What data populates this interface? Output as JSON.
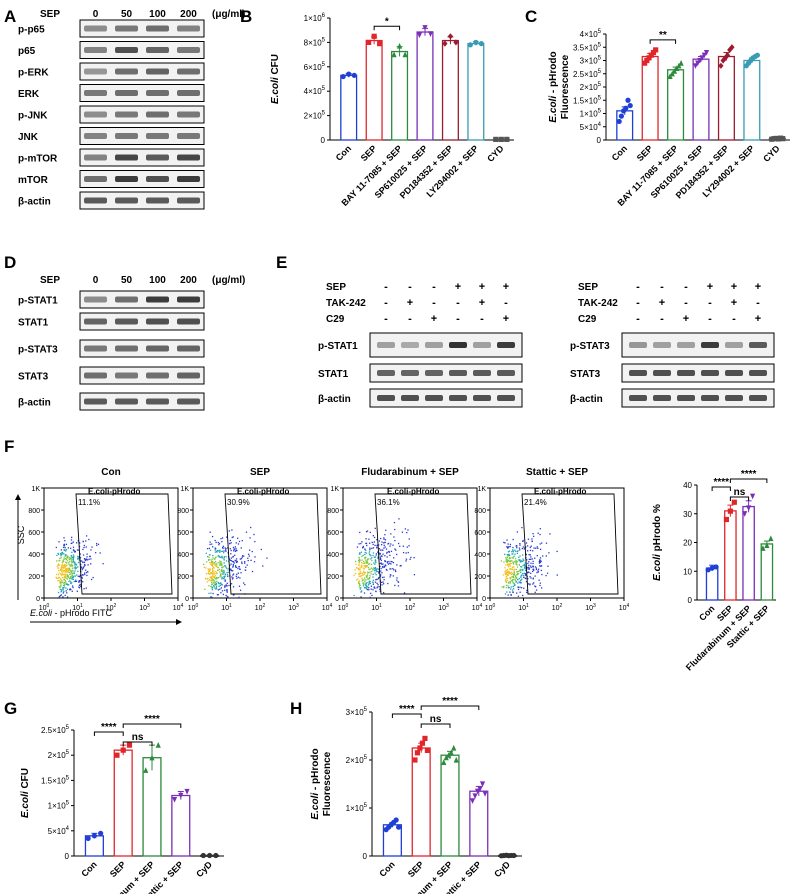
{
  "panels": {
    "A": {
      "letter": "A",
      "header": {
        "label": "SEP",
        "doses": [
          "0",
          "50",
          "100",
          "200"
        ],
        "unit": "(μg/ml)"
      },
      "rows": [
        "p-p65",
        "p65",
        "p-ERK",
        "ERK",
        "p-JNK",
        "JNK",
        "p-mTOR",
        "mTOR",
        "β-actin"
      ],
      "intensities": [
        [
          0.45,
          0.55,
          0.6,
          0.5
        ],
        [
          0.5,
          0.75,
          0.65,
          0.55
        ],
        [
          0.4,
          0.6,
          0.65,
          0.6
        ],
        [
          0.55,
          0.6,
          0.6,
          0.6
        ],
        [
          0.45,
          0.55,
          0.6,
          0.55
        ],
        [
          0.5,
          0.55,
          0.55,
          0.55
        ],
        [
          0.5,
          0.8,
          0.7,
          0.8
        ],
        [
          0.6,
          0.85,
          0.75,
          0.85
        ],
        [
          0.7,
          0.7,
          0.7,
          0.7
        ]
      ]
    },
    "D": {
      "letter": "D",
      "header": {
        "label": "SEP",
        "doses": [
          "0",
          "50",
          "100",
          "200"
        ],
        "unit": "(μg/ml)"
      },
      "rows": [
        "p-STAT1",
        "STAT1",
        "p-STAT3",
        "STAT3",
        "β-actin"
      ],
      "intensities": [
        [
          0.45,
          0.6,
          0.85,
          0.85
        ],
        [
          0.65,
          0.7,
          0.75,
          0.75
        ],
        [
          0.55,
          0.6,
          0.65,
          0.65
        ],
        [
          0.6,
          0.55,
          0.6,
          0.65
        ],
        [
          0.7,
          0.7,
          0.7,
          0.7
        ]
      ]
    },
    "E": {
      "letter": "E",
      "treatments": [
        {
          "label": "SEP",
          "signs": [
            "-",
            "-",
            "-",
            "+",
            "+",
            "+"
          ]
        },
        {
          "label": "TAK-242",
          "signs": [
            "-",
            "+",
            "-",
            "-",
            "+",
            "-"
          ]
        },
        {
          "label": "C29",
          "signs": [
            "-",
            "-",
            "+",
            "-",
            "-",
            "+"
          ]
        }
      ],
      "left_rows": [
        "p-STAT1",
        "STAT1",
        "β-actin"
      ],
      "right_rows": [
        "p-STAT3",
        "STAT3",
        "β-actin"
      ],
      "left_intensities": [
        [
          0.35,
          0.3,
          0.35,
          0.9,
          0.35,
          0.85
        ],
        [
          0.65,
          0.65,
          0.65,
          0.7,
          0.7,
          0.7
        ],
        [
          0.75,
          0.75,
          0.75,
          0.75,
          0.75,
          0.75
        ]
      ],
      "right_intensities": [
        [
          0.4,
          0.35,
          0.35,
          0.85,
          0.35,
          0.7
        ],
        [
          0.75,
          0.75,
          0.75,
          0.75,
          0.75,
          0.75
        ],
        [
          0.75,
          0.75,
          0.75,
          0.75,
          0.75,
          0.75
        ]
      ]
    },
    "F": {
      "letter": "F",
      "ylabel": "SSC",
      "xlabel_italic": "E.coli",
      "xlabel_rest": " - pHrodo FITC",
      "y_ticks": [
        "1K",
        "800",
        "600",
        "400",
        "200",
        "0"
      ],
      "x_ticks": [
        {
          "base": "10",
          "exp": "0"
        },
        {
          "base": "10",
          "exp": "1"
        },
        {
          "base": "10",
          "exp": "2"
        },
        {
          "base": "10",
          "exp": "3"
        },
        {
          "base": "10",
          "exp": "4"
        }
      ],
      "gate_label": "E.coli-pHrodo",
      "plots": [
        {
          "title": "Con",
          "percent": "11.1%"
        },
        {
          "title": "SEP",
          "percent": "30.9%"
        },
        {
          "title": "Fludarabinum + SEP",
          "percent": "36.1%"
        },
        {
          "title": "Stattic + SEP",
          "percent": "21.4%"
        }
      ]
    }
  },
  "chart_data": [
    {
      "id": "B",
      "letter": "B",
      "type": "bar",
      "ylabel_italic": "E.coli",
      "ylabel_rest": " CFU",
      "ylabel2": "",
      "ylim": [
        0,
        1000000
      ],
      "yticks": [
        {
          "base": "0",
          "exp": ""
        },
        {
          "base": "2×10",
          "exp": "5"
        },
        {
          "base": "4×10",
          "exp": "5"
        },
        {
          "base": "6×10",
          "exp": "5"
        },
        {
          "base": "8×10",
          "exp": "5"
        },
        {
          "base": "1×10",
          "exp": "6"
        }
      ],
      "ytick_values": [
        0,
        200000,
        400000,
        600000,
        800000,
        1000000
      ],
      "categories": [
        "Con",
        "SEP",
        "BAY 11-7085 + SEP",
        "SP610025 + SEP",
        "PD184352 + SEP",
        "LY294002 + SEP",
        "CYD"
      ],
      "values": [
        530000,
        815000,
        725000,
        885000,
        815000,
        790000,
        5000
      ],
      "errors": [
        15000,
        30000,
        40000,
        30000,
        30000,
        15000,
        2000
      ],
      "points": [
        [
          520000,
          540000,
          530000
        ],
        [
          800000,
          850000,
          790000
        ],
        [
          700000,
          770000,
          700000
        ],
        [
          860000,
          920000,
          870000
        ],
        [
          790000,
          850000,
          800000
        ],
        [
          780000,
          800000,
          790000
        ],
        [
          5000,
          5000,
          5000
        ]
      ],
      "colors": [
        "#1f3fd6",
        "#e0262b",
        "#2c8a3c",
        "#7b2fb8",
        "#9b1b30",
        "#3a9bb5",
        "#555555"
      ],
      "markers": [
        "circle",
        "square",
        "triangle",
        "down",
        "diamond",
        "circle",
        "square"
      ],
      "sig": [
        {
          "from": 1,
          "to": 2,
          "label": "*"
        }
      ]
    },
    {
      "id": "C",
      "letter": "C",
      "type": "bar",
      "ylabel_italic": "E.coli",
      "ylabel_rest": " - pHrodo",
      "ylabel2": "Fluorescence",
      "ylim": [
        0,
        400000
      ],
      "yticks": [
        {
          "base": "0",
          "exp": ""
        },
        {
          "base": "5×10",
          "exp": "4"
        },
        {
          "base": "1×10",
          "exp": "5"
        },
        {
          "base": "1.5×10",
          "exp": "5"
        },
        {
          "base": "2×10",
          "exp": "5"
        },
        {
          "base": "2.5×10",
          "exp": "5"
        },
        {
          "base": "3×10",
          "exp": "5"
        },
        {
          "base": "3.5×10",
          "exp": "5"
        },
        {
          "base": "4×10",
          "exp": "5"
        }
      ],
      "ytick_values": [
        0,
        50000,
        100000,
        150000,
        200000,
        250000,
        300000,
        350000,
        400000
      ],
      "categories": [
        "Con",
        "SEP",
        "BAY 11-7085 + SEP",
        "SP610025 + SEP",
        "PD184352 + SEP",
        "LY294002 + SEP",
        "CYD"
      ],
      "values": [
        110000,
        315000,
        265000,
        305000,
        315000,
        300000,
        5000
      ],
      "errors": [
        15000,
        12000,
        10000,
        10000,
        15000,
        10000,
        2000
      ],
      "points": [
        [
          70000,
          90000,
          110000,
          120000,
          150000,
          130000
        ],
        [
          290000,
          300000,
          310000,
          320000,
          330000,
          340000
        ],
        [
          240000,
          250000,
          260000,
          270000,
          280000,
          290000
        ],
        [
          280000,
          290000,
          300000,
          310000,
          320000,
          330000
        ],
        [
          280000,
          300000,
          310000,
          320000,
          340000,
          350000
        ],
        [
          280000,
          290000,
          300000,
          310000,
          315000,
          320000
        ],
        [
          3000,
          5000,
          6000,
          4000,
          7000,
          5000
        ]
      ],
      "colors": [
        "#1f3fd6",
        "#e0262b",
        "#2c8a3c",
        "#7b2fb8",
        "#9b1b30",
        "#3a9bb5",
        "#555555"
      ],
      "markers": [
        "circle",
        "square",
        "triangle",
        "down",
        "diamond",
        "circle",
        "square"
      ],
      "sig": [
        {
          "from": 1,
          "to": 2,
          "label": "**"
        }
      ]
    },
    {
      "id": "Fbar",
      "letter": "",
      "type": "bar",
      "ylabel_italic": "E.coli",
      "ylabel_rest": " pHrodo %",
      "ylabel2": "",
      "ylim": [
        0,
        40
      ],
      "yticks": [
        {
          "base": "0",
          "exp": ""
        },
        {
          "base": "10",
          "exp": ""
        },
        {
          "base": "20",
          "exp": ""
        },
        {
          "base": "30",
          "exp": ""
        },
        {
          "base": "40",
          "exp": ""
        }
      ],
      "ytick_values": [
        0,
        10,
        20,
        30,
        40
      ],
      "categories": [
        "Con",
        "SEP",
        "Fludarabinum + SEP",
        "Stattic + SEP"
      ],
      "values": [
        11.1,
        31,
        32.5,
        19.5
      ],
      "errors": [
        1,
        2,
        2,
        1
      ],
      "points": [
        [
          10.5,
          11.1,
          11.5
        ],
        [
          28,
          30.9,
          34
        ],
        [
          30,
          32,
          36.1
        ],
        [
          18,
          19,
          21.4
        ]
      ],
      "colors": [
        "#1f3fd6",
        "#e0262b",
        "#7b2fb8",
        "#2c8a3c"
      ],
      "markers": [
        "circle",
        "square",
        "down",
        "triangle"
      ],
      "sig": [
        {
          "from": 0,
          "to": 1,
          "label": "****"
        },
        {
          "from": 1,
          "to": 2,
          "label": "ns"
        },
        {
          "from": 1,
          "to": 3,
          "label": "****"
        }
      ]
    },
    {
      "id": "G",
      "letter": "G",
      "type": "bar",
      "ylabel_italic": "E.coli",
      "ylabel_rest": " CFU",
      "ylabel2": "",
      "ylim": [
        0,
        250000
      ],
      "yticks": [
        {
          "base": "0",
          "exp": ""
        },
        {
          "base": "5×10",
          "exp": "4"
        },
        {
          "base": "1×10",
          "exp": "5"
        },
        {
          "base": "1.5×10",
          "exp": "5"
        },
        {
          "base": "2×10",
          "exp": "5"
        },
        {
          "base": "2.5×10",
          "exp": "5"
        }
      ],
      "ytick_values": [
        0,
        50000,
        100000,
        150000,
        200000,
        250000
      ],
      "categories": [
        "Con",
        "SEP",
        "Fludarabinum + SEP",
        "Stattic + SEP",
        "CyD"
      ],
      "values": [
        40000,
        210000,
        195000,
        120000,
        1000
      ],
      "errors": [
        5000,
        10000,
        25000,
        8000,
        500
      ],
      "points": [
        [
          35000,
          40000,
          45000
        ],
        [
          200000,
          210000,
          220000
        ],
        [
          170000,
          195000,
          220000
        ],
        [
          112000,
          120000,
          128000
        ],
        [
          1000,
          1000,
          1000
        ]
      ],
      "colors": [
        "#1f3fd6",
        "#e0262b",
        "#2c8a3c",
        "#7b2fb8",
        "#333333"
      ],
      "markers": [
        "circle",
        "square",
        "triangle",
        "down",
        "circle"
      ],
      "sig": [
        {
          "from": 0,
          "to": 1,
          "label": "****"
        },
        {
          "from": 1,
          "to": 2,
          "label": "ns"
        },
        {
          "from": 1,
          "to": 3,
          "label": "****"
        }
      ]
    },
    {
      "id": "H",
      "letter": "H",
      "type": "bar",
      "ylabel_italic": "E.coli",
      "ylabel_rest": " - pHrodo",
      "ylabel2": "Fluorescence",
      "ylim": [
        0,
        300000
      ],
      "yticks": [
        {
          "base": "0",
          "exp": ""
        },
        {
          "base": "1×10",
          "exp": "5"
        },
        {
          "base": "2×10",
          "exp": "5"
        },
        {
          "base": "3×10",
          "exp": "5"
        }
      ],
      "ytick_values": [
        0,
        100000,
        200000,
        300000
      ],
      "categories": [
        "Con",
        "SEP",
        "Fludarabinum + SEP",
        "Stattic + SEP",
        "CyD"
      ],
      "values": [
        65000,
        225000,
        210000,
        135000,
        1000
      ],
      "errors": [
        5000,
        10000,
        8000,
        10000,
        500
      ],
      "points": [
        [
          55000,
          60000,
          65000,
          70000,
          75000,
          60000
        ],
        [
          200000,
          215000,
          225000,
          235000,
          245000,
          220000
        ],
        [
          195000,
          205000,
          210000,
          215000,
          225000,
          200000
        ],
        [
          115000,
          125000,
          135000,
          140000,
          150000,
          130000
        ],
        [
          500,
          1000,
          1500,
          800,
          1200,
          1000
        ]
      ],
      "colors": [
        "#1f3fd6",
        "#e0262b",
        "#2c8a3c",
        "#7b2fb8",
        "#333333"
      ],
      "markers": [
        "circle",
        "square",
        "triangle",
        "down",
        "circle"
      ],
      "sig": [
        {
          "from": 0,
          "to": 1,
          "label": "****"
        },
        {
          "from": 1,
          "to": 2,
          "label": "ns"
        },
        {
          "from": 1,
          "to": 3,
          "label": "****"
        }
      ]
    }
  ]
}
